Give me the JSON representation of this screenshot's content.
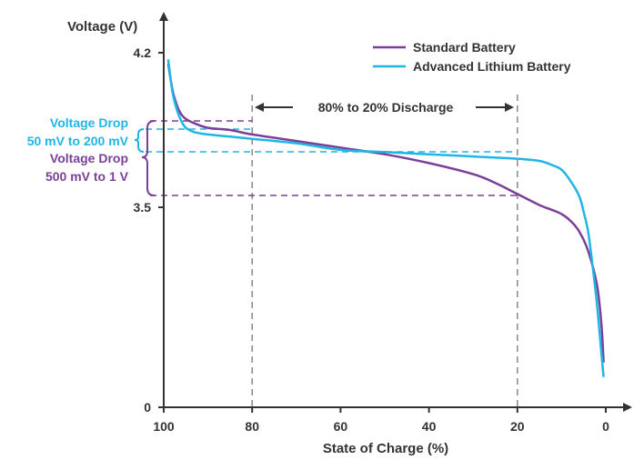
{
  "chart_data": {
    "type": "line",
    "ylabel": "Voltage (V)",
    "xlabel": "State of Charge (%)",
    "xlim": [
      100,
      0
    ],
    "x_ticks": [
      "100",
      "80",
      "60",
      "40",
      "20",
      "0"
    ],
    "y_ticks": [
      "0",
      "3.5",
      "4.2"
    ],
    "colors": {
      "standard": "#7b3f98",
      "advanced": "#1fb6e6",
      "axis": "#333333",
      "guide": "#888888"
    },
    "legend": {
      "position": "top-right",
      "items": [
        "Standard Battery",
        "Advanced Lithium Battery"
      ]
    },
    "series": [
      {
        "name": "Standard Battery",
        "points": [
          [
            99,
            4.15
          ],
          [
            98,
            4.03
          ],
          [
            97,
            3.96
          ],
          [
            96,
            3.92
          ],
          [
            95,
            3.9
          ],
          [
            93,
            3.88
          ],
          [
            90,
            3.86
          ],
          [
            85,
            3.85
          ],
          [
            80,
            3.83
          ],
          [
            70,
            3.8
          ],
          [
            60,
            3.77
          ],
          [
            50,
            3.74
          ],
          [
            40,
            3.7
          ],
          [
            30,
            3.65
          ],
          [
            25,
            3.61
          ],
          [
            20,
            3.56
          ],
          [
            15,
            3.51
          ],
          [
            12,
            3.47
          ],
          [
            10,
            3.43
          ],
          [
            8,
            3.36
          ],
          [
            6,
            3.25
          ],
          [
            4,
            3.05
          ],
          [
            2,
            2.7
          ],
          [
            1,
            2.3
          ],
          [
            0.5,
            1.9
          ]
        ]
      },
      {
        "name": "Advanced Lithium Battery",
        "points": [
          [
            99,
            4.17
          ],
          [
            98,
            4.02
          ],
          [
            97,
            3.94
          ],
          [
            96,
            3.89
          ],
          [
            95,
            3.86
          ],
          [
            93,
            3.84
          ],
          [
            90,
            3.83
          ],
          [
            85,
            3.82
          ],
          [
            80,
            3.81
          ],
          [
            70,
            3.79
          ],
          [
            60,
            3.76
          ],
          [
            50,
            3.75
          ],
          [
            40,
            3.74
          ],
          [
            30,
            3.73
          ],
          [
            20,
            3.72
          ],
          [
            15,
            3.71
          ],
          [
            12,
            3.69
          ],
          [
            10,
            3.67
          ],
          [
            8,
            3.62
          ],
          [
            6,
            3.55
          ],
          [
            5,
            3.45
          ],
          [
            4,
            3.25
          ],
          [
            3,
            2.9
          ],
          [
            2,
            2.5
          ],
          [
            1,
            2.0
          ],
          [
            0.5,
            1.75
          ]
        ]
      }
    ],
    "annotations": {
      "discharge_range": "80% to 20% Discharge",
      "advanced_drop_title": "Voltage Drop",
      "advanced_drop_value": "50 mV to 200 mV",
      "standard_drop_title": "Voltage Drop",
      "standard_drop_value": "500 mV to 1 V"
    }
  }
}
